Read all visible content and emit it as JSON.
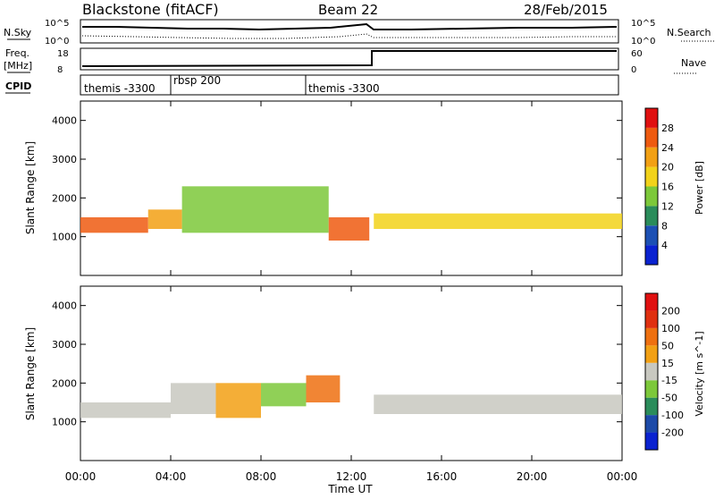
{
  "header": {
    "station": "Blackstone (fitACF)",
    "beam": "Beam 22",
    "date": "28/Feb/2015"
  },
  "labels": {
    "nsky": "N.Sky",
    "nsearch": "N.Search",
    "freq_line1": "Freq.",
    "freq_line2": "[MHz]",
    "nave": "Nave",
    "cpid": "CPID",
    "time_axis": "Time UT",
    "slant_range": "Slant Range [km]"
  },
  "noise_panel": {
    "left_ticks": [
      "10^5",
      "10^0"
    ],
    "right_ticks": [
      "10^5",
      "10^0"
    ]
  },
  "freq_panel": {
    "left_ticks": [
      "18",
      "8"
    ],
    "right_ticks": [
      "60",
      "0"
    ]
  },
  "cpid_panel": {
    "segments": [
      {
        "label": "themis -3300",
        "start": 0,
        "end": 4
      },
      {
        "label": "rbsp 200",
        "start": 4,
        "end": 10
      },
      {
        "label": "themis -3300",
        "start": 10,
        "end": 24
      }
    ]
  },
  "time_ticks": [
    "00:00",
    "04:00",
    "08:00",
    "12:00",
    "16:00",
    "20:00",
    "00:00"
  ],
  "chart_data": [
    {
      "type": "heatmap",
      "title": "",
      "xlabel": "Time UT",
      "ylabel": "Slant Range [km]",
      "xlim": [
        0,
        24
      ],
      "ylim": [
        0,
        4500
      ],
      "y_ticks": [
        1000,
        2000,
        3000,
        4000
      ],
      "colorbar": {
        "label": "Power [dB]",
        "ticks": [
          "28",
          "24",
          "20",
          "16",
          "12",
          "8",
          "4"
        ],
        "colors": [
          "#0a22d0",
          "#1c50b4",
          "#2a8c5a",
          "#7cc83a",
          "#f2d21a",
          "#f2a014",
          "#ee5a10",
          "#e01010"
        ]
      },
      "bands": [
        {
          "t0": 0.0,
          "t1": 3.0,
          "r0": 1100,
          "r1": 1500,
          "level": 6
        },
        {
          "t0": 3.0,
          "t1": 4.5,
          "r0": 1200,
          "r1": 1700,
          "level": 5
        },
        {
          "t0": 4.5,
          "t1": 11.0,
          "r0": 1100,
          "r1": 2300,
          "level": 3
        },
        {
          "t0": 11.0,
          "t1": 12.8,
          "r0": 900,
          "r1": 1500,
          "level": 6
        },
        {
          "t0": 13.0,
          "t1": 24.0,
          "r0": 1200,
          "r1": 1600,
          "level": 4
        }
      ]
    },
    {
      "type": "heatmap",
      "title": "",
      "xlabel": "Time UT",
      "ylabel": "Slant Range [km]",
      "xlim": [
        0,
        24
      ],
      "ylim": [
        0,
        4500
      ],
      "y_ticks": [
        1000,
        2000,
        3000,
        4000
      ],
      "colorbar": {
        "label": "Velocity [m s^-1]",
        "ticks": [
          "200",
          "100",
          "50",
          "15",
          "-15",
          "-50",
          "-100",
          "-200"
        ],
        "colors": [
          "#0a22d0",
          "#1c4aa8",
          "#2a8c5a",
          "#7cc83a",
          "#c8c8c0",
          "#f2a014",
          "#ee7010",
          "#e03010",
          "#e01010"
        ]
      },
      "bands": [
        {
          "t0": 0.0,
          "t1": 4.0,
          "r0": 1100,
          "r1": 1500,
          "level": 4
        },
        {
          "t0": 4.0,
          "t1": 6.0,
          "r0": 1200,
          "r1": 2000,
          "level": 4
        },
        {
          "t0": 6.0,
          "t1": 8.0,
          "r0": 1100,
          "r1": 2000,
          "level": 5
        },
        {
          "t0": 8.0,
          "t1": 10.0,
          "r0": 1400,
          "r1": 2000,
          "level": 3
        },
        {
          "t0": 10.0,
          "t1": 11.5,
          "r0": 1500,
          "r1": 2200,
          "level": 6
        },
        {
          "t0": 13.0,
          "t1": 24.0,
          "r0": 1200,
          "r1": 1700,
          "level": 4
        }
      ]
    }
  ]
}
